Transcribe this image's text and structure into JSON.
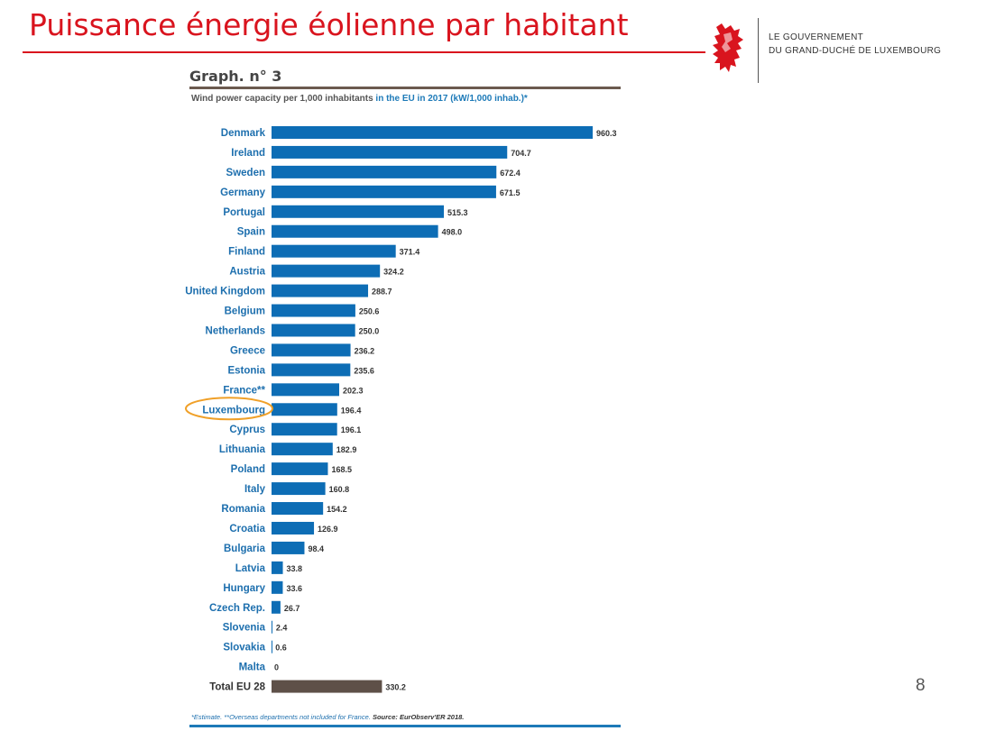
{
  "slide": {
    "title": "Puissance énergie éolienne par habitant",
    "page_number": "8"
  },
  "government": {
    "line1": "LE GOUVERNEMENT",
    "line2": "DU GRAND-DUCHÉ DE LUXEMBOURG"
  },
  "colors": {
    "title_red": "#d9141e",
    "bar_blue": "#0d6db5",
    "total_bar": "#5e5048",
    "label_blue": "#1d6fae",
    "highlight_orange": "#f0a028"
  },
  "chart_data": {
    "type": "bar",
    "orientation": "horizontal",
    "graph_label": "Graph. n° 3",
    "title_part1": "Wind power capacity per 1,000 inhabitants ",
    "title_part2": "in the EU in 2017 (kW/1,000 inhab.)*",
    "categories": [
      "Denmark",
      "Ireland",
      "Sweden",
      "Germany",
      "Portugal",
      "Spain",
      "Finland",
      "Austria",
      "United Kingdom",
      "Belgium",
      "Netherlands",
      "Greece",
      "Estonia",
      "France**",
      "Luxembourg",
      "Cyprus",
      "Lithuania",
      "Poland",
      "Italy",
      "Romania",
      "Croatia",
      "Bulgaria",
      "Latvia",
      "Hungary",
      "Czech Rep.",
      "Slovenia",
      "Slovakia",
      "Malta",
      "Total EU 28"
    ],
    "values": [
      960.3,
      704.7,
      672.4,
      671.5,
      515.3,
      498.0,
      371.4,
      324.2,
      288.7,
      250.6,
      250.0,
      236.2,
      235.6,
      202.3,
      196.4,
      196.1,
      182.9,
      168.5,
      160.8,
      154.2,
      126.9,
      98.4,
      33.8,
      33.6,
      26.7,
      2.4,
      0.6,
      0,
      330.2
    ],
    "value_labels": [
      "960.3",
      "704.7",
      "672.4",
      "671.5",
      "515.3",
      "498.0",
      "371.4",
      "324.2",
      "288.7",
      "250.6",
      "250.0",
      "236.2",
      "235.6",
      "202.3",
      "196.4",
      "196.1",
      "182.9",
      "168.5",
      "160.8",
      "154.2",
      "126.9",
      "98.4",
      "33.8",
      "33.6",
      "26.7",
      "2.4",
      "0.6",
      "0",
      "330.2"
    ],
    "highlighted_category": "Luxembourg",
    "total_category": "Total EU 28",
    "footnote_italic": "*Estimate. **Overseas departments not included for France.",
    "footnote_source": "Source: EurObserv'ER 2018.",
    "xlim": [
      0,
      960.3
    ],
    "grid": false,
    "legend": "none"
  }
}
